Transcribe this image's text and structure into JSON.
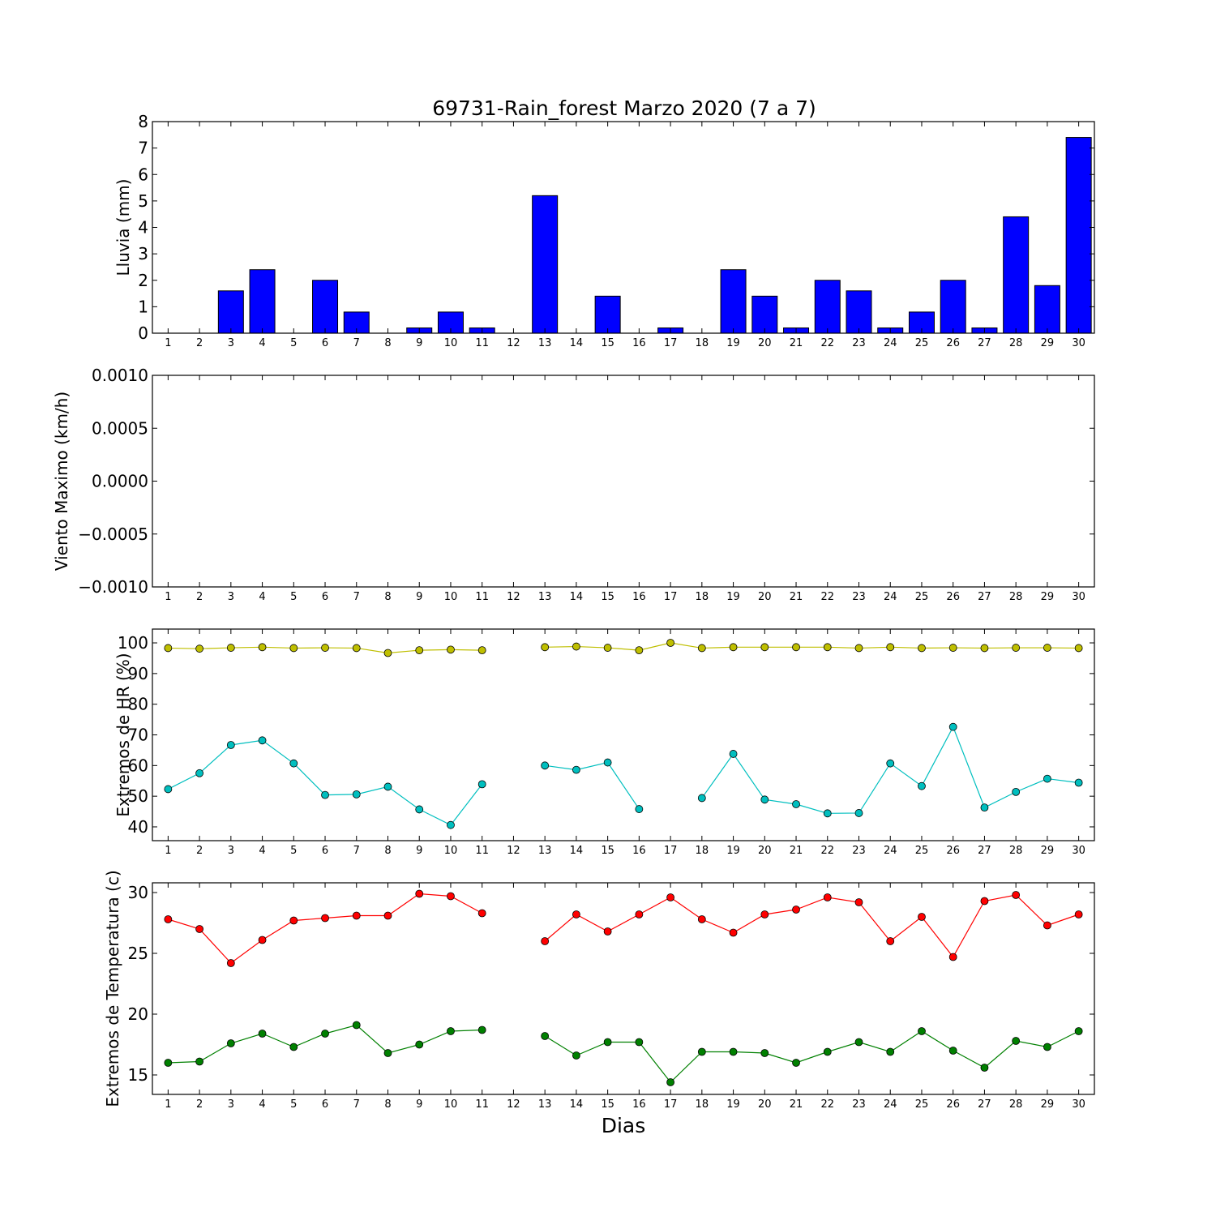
{
  "chart_data": [
    {
      "type": "bar",
      "title": "69731-Rain_forest Marzo 2020  (7 a 7)",
      "ylabel": "Lluvia (mm)",
      "xlabel": "",
      "ylim": [
        0,
        8
      ],
      "yticks": [
        "0",
        "1",
        "2",
        "3",
        "4",
        "5",
        "6",
        "7",
        "8"
      ],
      "categories": [
        "1",
        "2",
        "3",
        "4",
        "5",
        "6",
        "7",
        "8",
        "9",
        "10",
        "11",
        "12",
        "13",
        "14",
        "15",
        "16",
        "17",
        "18",
        "19",
        "20",
        "21",
        "22",
        "23",
        "24",
        "25",
        "26",
        "27",
        "28",
        "29",
        "30"
      ],
      "values": [
        0,
        0,
        1.6,
        2.4,
        0,
        2.0,
        0.8,
        0,
        0.2,
        0.8,
        0.2,
        0,
        5.2,
        0,
        1.4,
        0,
        0.2,
        0,
        2.4,
        1.4,
        0.2,
        2.0,
        1.6,
        0.2,
        0.8,
        2.0,
        0.2,
        4.4,
        1.8,
        7.4
      ],
      "colors": {
        "bar": "#0000ff"
      },
      "grid": false
    },
    {
      "type": "line",
      "title": "",
      "ylabel": "Viento Maximo (km/h)",
      "xlabel": "",
      "ylim": [
        -0.001,
        0.001
      ],
      "yticks": [
        "−0.0010",
        "−0.0005",
        "0.0000",
        "0.0005",
        "0.0010"
      ],
      "categories": [
        "1",
        "2",
        "3",
        "4",
        "5",
        "6",
        "7",
        "8",
        "9",
        "10",
        "11",
        "12",
        "13",
        "14",
        "15",
        "16",
        "17",
        "18",
        "19",
        "20",
        "21",
        "22",
        "23",
        "24",
        "25",
        "26",
        "27",
        "28",
        "29",
        "30"
      ],
      "series": [],
      "grid": false
    },
    {
      "type": "line",
      "title": "",
      "ylabel": "Extremos de HR (%)",
      "xlabel": "",
      "ylim": [
        35.5,
        104.5
      ],
      "yticks": [
        "40",
        "50",
        "60",
        "70",
        "80",
        "90",
        "100"
      ],
      "categories": [
        "1",
        "2",
        "3",
        "4",
        "5",
        "6",
        "7",
        "8",
        "9",
        "10",
        "11",
        "12",
        "13",
        "14",
        "15",
        "16",
        "17",
        "18",
        "19",
        "20",
        "21",
        "22",
        "23",
        "24",
        "25",
        "26",
        "27",
        "28",
        "29",
        "30"
      ],
      "series": [
        {
          "color": "#bfbf00",
          "values": [
            98.3,
            98.1,
            98.4,
            98.6,
            98.3,
            98.4,
            98.3,
            96.7,
            97.6,
            97.8,
            97.6,
            null,
            98.6,
            98.8,
            98.4,
            97.6,
            100,
            98.3,
            98.6,
            98.6,
            98.6,
            98.6,
            98.3,
            98.6,
            98.3,
            98.4,
            98.3,
            98.4,
            98.4,
            98.3
          ]
        },
        {
          "color": "#00bfbf",
          "values": [
            52.3,
            57.5,
            66.7,
            68.2,
            60.7,
            50.4,
            50.6,
            53.1,
            45.7,
            40.6,
            53.9,
            null,
            60.0,
            58.6,
            61.0,
            45.8,
            null,
            49.4,
            63.8,
            48.9,
            47.4,
            44.4,
            44.5,
            60.7,
            53.3,
            72.6,
            46.3,
            51.4,
            55.7,
            54.4
          ]
        }
      ],
      "grid": false
    },
    {
      "type": "line",
      "title": "",
      "ylabel": "Extremos de Temperatura (c)",
      "xlabel": "Dias",
      "ylim": [
        13.4,
        30.8
      ],
      "yticks": [
        "15",
        "20",
        "25",
        "30"
      ],
      "categories": [
        "1",
        "2",
        "3",
        "4",
        "5",
        "6",
        "7",
        "8",
        "9",
        "10",
        "11",
        "12",
        "13",
        "14",
        "15",
        "16",
        "17",
        "18",
        "19",
        "20",
        "21",
        "22",
        "23",
        "24",
        "25",
        "26",
        "27",
        "28",
        "29",
        "30"
      ],
      "series": [
        {
          "color": "#ff0000",
          "values": [
            27.8,
            27.0,
            24.2,
            26.1,
            27.7,
            27.9,
            28.1,
            28.1,
            29.9,
            29.7,
            28.3,
            null,
            26.0,
            28.2,
            26.8,
            28.2,
            29.6,
            27.8,
            26.7,
            28.2,
            28.6,
            29.6,
            29.2,
            26.0,
            28.0,
            24.7,
            29.3,
            29.8,
            27.3,
            28.2
          ]
        },
        {
          "color": "#008000",
          "values": [
            16.0,
            16.1,
            17.6,
            18.4,
            17.3,
            18.4,
            19.1,
            16.8,
            17.5,
            18.6,
            18.7,
            null,
            18.2,
            16.6,
            17.7,
            17.7,
            14.4,
            16.9,
            16.9,
            16.8,
            16.0,
            16.9,
            17.7,
            16.9,
            18.6,
            17.0,
            15.6,
            17.8,
            17.3,
            18.6
          ]
        }
      ],
      "grid": false
    }
  ]
}
